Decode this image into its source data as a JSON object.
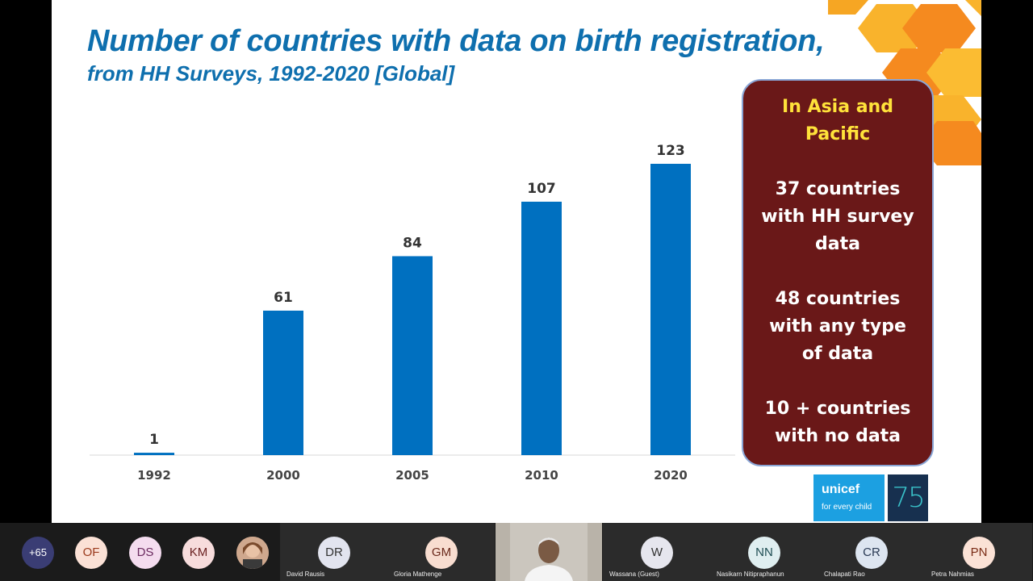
{
  "slide": {
    "title": "Number of countries with data on birth registration,",
    "subtitle": "from HH Surveys, 1992-2020 [Global]"
  },
  "chart_data": {
    "type": "bar",
    "categories": [
      "1992",
      "2000",
      "2005",
      "2010",
      "2020"
    ],
    "values": [
      1,
      61,
      84,
      107,
      123
    ],
    "title": "Number of countries with data on birth registration, from HH Surveys, 1992-2020 [Global]",
    "xlabel": "",
    "ylabel": "",
    "ylim": [
      0,
      123
    ],
    "grid": false,
    "bar_color": "#0070c0"
  },
  "info_box": {
    "heading": "In Asia and Pacific",
    "items": [
      "37 countries with HH survey data",
      "48 countries with any type of data",
      "10 + countries with no data"
    ],
    "background": "#6a1818",
    "heading_color": "#ffe23a"
  },
  "logos": {
    "unicef_name": "unicef",
    "unicef_tagline": "for every child",
    "anniversary": "75"
  },
  "participants": {
    "overflow": "+65",
    "bubbles": [
      {
        "initials": "OF",
        "bg": "#fbe1d6",
        "fg": "#9b3a1c"
      },
      {
        "initials": "DS",
        "bg": "#f4dcef",
        "fg": "#6b2a60"
      },
      {
        "initials": "KM",
        "bg": "#f7dcdc",
        "fg": "#6b2222"
      }
    ],
    "tiles": [
      {
        "initials": "DR",
        "name": "David Rausis",
        "bg": "#e2e4ef",
        "fg": "#333333"
      },
      {
        "initials": "GM",
        "name": "Gloria Mathenge",
        "bg": "#f8ddd0",
        "fg": "#6b2a1c"
      },
      {
        "initials": "W",
        "name": "Wassana (Guest)",
        "bg": "#e6e6ee",
        "fg": "#333333"
      },
      {
        "initials": "NN",
        "name": "Nasikarn Nitipraphanun",
        "bg": "#dfeef0",
        "fg": "#1d4c52"
      },
      {
        "initials": "CR",
        "name": "Chalapati Rao",
        "bg": "#dde5f0",
        "fg": "#2b3b55"
      },
      {
        "initials": "PN",
        "name": "Petra Nahmias",
        "bg": "#fbe2d6",
        "fg": "#7a2c16"
      }
    ]
  }
}
